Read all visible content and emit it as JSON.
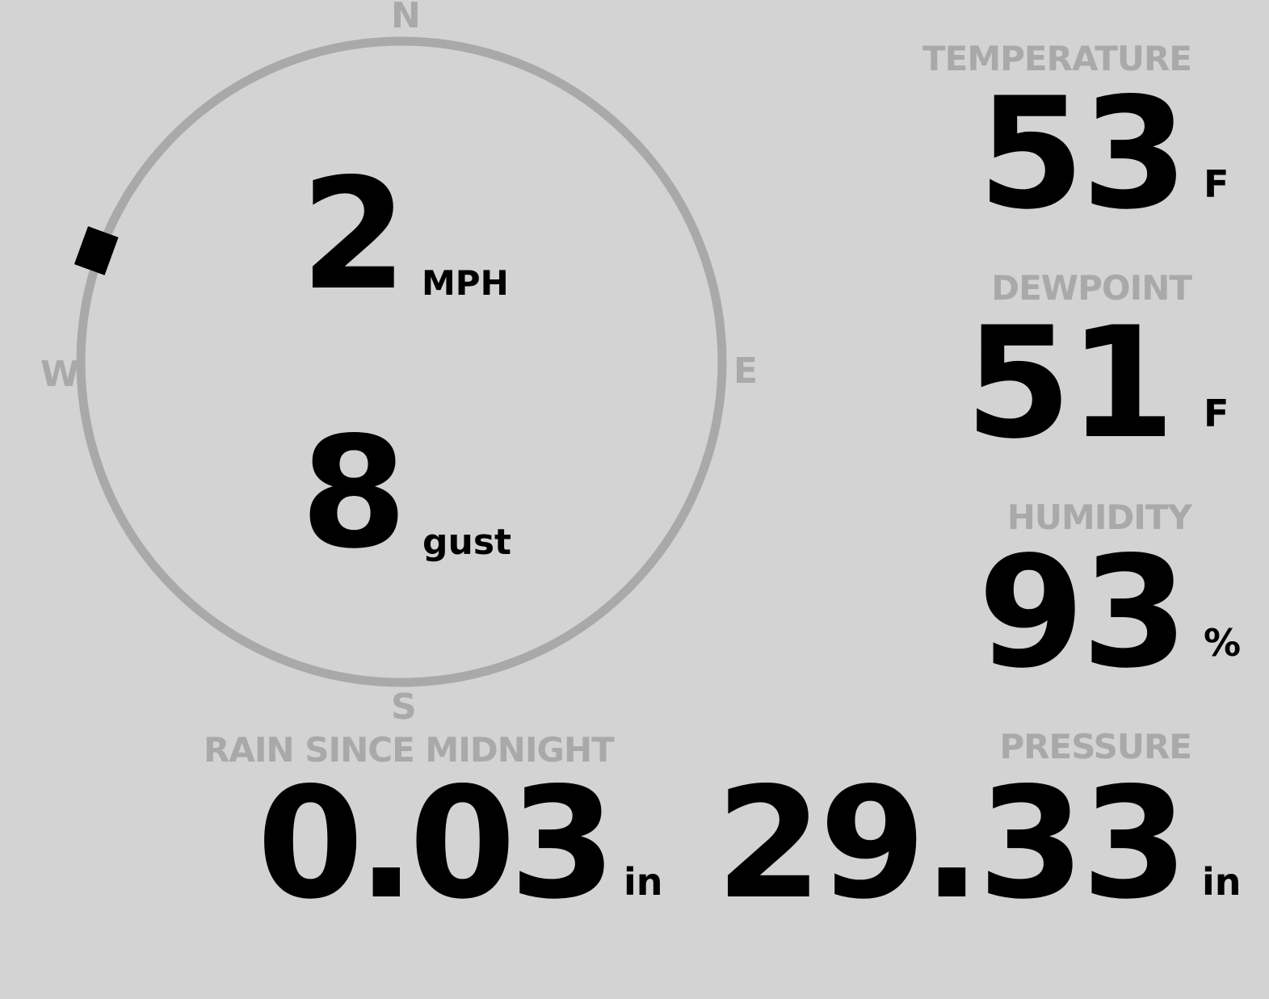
{
  "wind": {
    "speed": "2",
    "speed_unit": "MPH",
    "gust": "8",
    "gust_label": "gust",
    "direction_degrees": 290,
    "compass": {
      "n": "N",
      "e": "E",
      "s": "S",
      "w": "W"
    }
  },
  "temperature": {
    "label": "TEMPERATURE",
    "value": "53",
    "unit": "F"
  },
  "dewpoint": {
    "label": "DEWPOINT",
    "value": "51",
    "unit": "F"
  },
  "humidity": {
    "label": "HUMIDITY",
    "value": "93",
    "unit": "%"
  },
  "rain": {
    "label": "RAIN SINCE MIDNIGHT",
    "value": "0.03",
    "unit": "in"
  },
  "pressure": {
    "label": "PRESSURE",
    "value": "29.33",
    "unit": "in"
  },
  "colors": {
    "background": "#d3d3d3",
    "muted": "#a9a9a9",
    "value": "#000000"
  }
}
